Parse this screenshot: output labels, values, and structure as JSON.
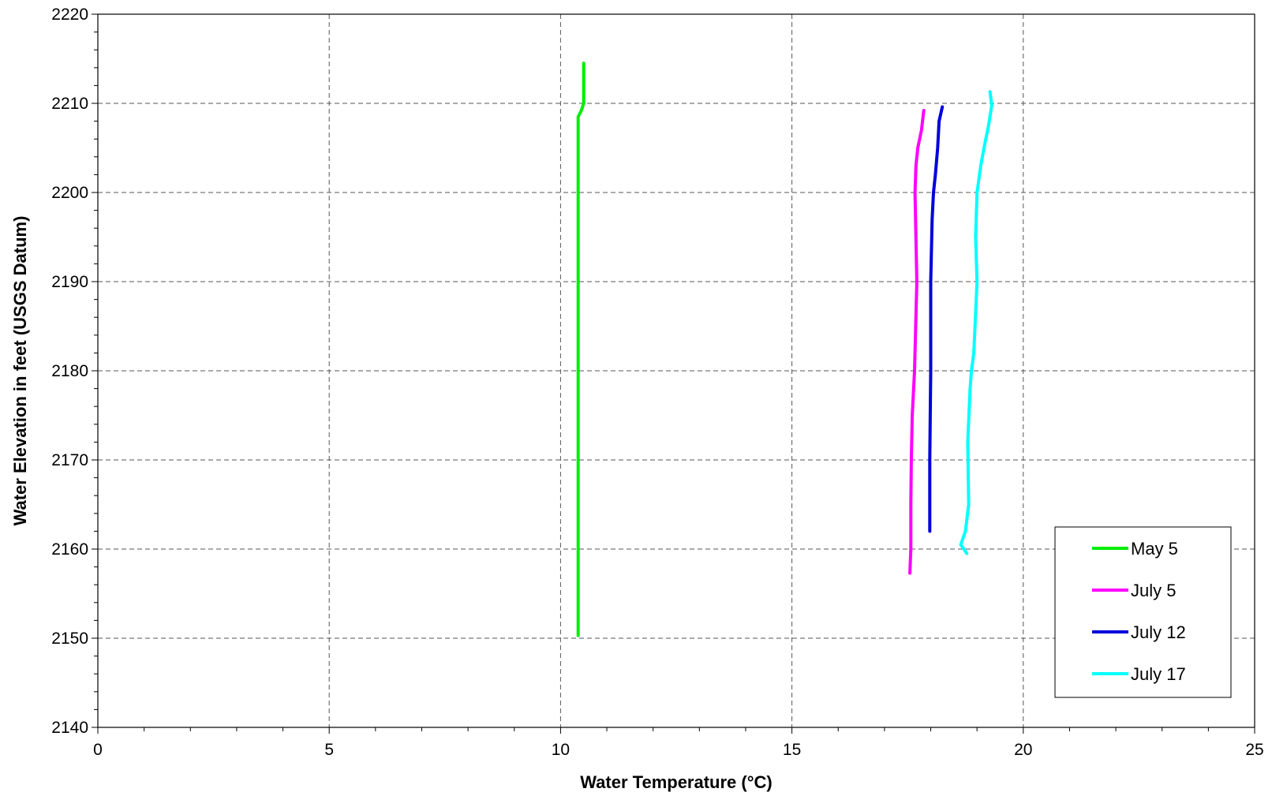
{
  "chart_data": {
    "type": "line",
    "title": "",
    "xlabel": "Water Temperature (°C)",
    "ylabel": "Water Elevation in feet (USGS Datum)",
    "xlim": [
      0,
      25
    ],
    "ylim": [
      2140,
      2220
    ],
    "xticks": [
      0,
      5,
      10,
      15,
      20,
      25
    ],
    "xtick_labels": [
      "0",
      "5",
      "10",
      "15",
      "20",
      "25"
    ],
    "yticks": [
      2140,
      2150,
      2160,
      2170,
      2180,
      2190,
      2200,
      2210,
      2220
    ],
    "ytick_labels": [
      "2140",
      "2150",
      "2160",
      "2170",
      "2180",
      "2190",
      "2200",
      "2210",
      "2220"
    ],
    "grid": true,
    "legend_position": "bottom-right",
    "series": [
      {
        "name": "May 5",
        "color": "#00ee00",
        "x": [
          10.5,
          10.5,
          10.5,
          10.45,
          10.38,
          10.38,
          10.38,
          10.38,
          10.38,
          10.38,
          10.38,
          10.38
        ],
        "y": [
          2214.5,
          2212,
          2210,
          2209.2,
          2208.5,
          2205,
          2200,
          2190,
          2180,
          2170,
          2160,
          2150.3
        ]
      },
      {
        "name": "July 5",
        "color": "#ff00ff",
        "x": [
          17.85,
          17.8,
          17.72,
          17.68,
          17.66,
          17.7,
          17.65,
          17.6,
          17.58,
          17.57,
          17.57,
          17.55
        ],
        "y": [
          2209.2,
          2207,
          2205,
          2203,
          2200,
          2190,
          2180,
          2175,
          2170,
          2165,
          2160,
          2157.3
        ]
      },
      {
        "name": "July 12",
        "color": "#0000dd",
        "x": [
          18.25,
          18.18,
          18.15,
          18.1,
          18.06,
          18.03,
          18.0,
          18.0,
          17.98,
          17.98
        ],
        "y": [
          2209.6,
          2208,
          2205,
          2202,
          2200,
          2197,
          2190,
          2180,
          2170,
          2162
        ]
      },
      {
        "name": "July 17",
        "color": "#00ffff",
        "x": [
          19.28,
          19.32,
          19.25,
          19.15,
          19.08,
          19.0,
          18.97,
          19.0,
          18.93,
          18.88,
          18.85,
          18.8,
          18.82,
          18.75,
          18.65,
          18.78
        ],
        "y": [
          2211.3,
          2209.8,
          2207.5,
          2205,
          2203,
          2200,
          2195,
          2190,
          2182,
          2180,
          2178,
          2172,
          2165,
          2162,
          2160.5,
          2159.5
        ]
      }
    ]
  }
}
